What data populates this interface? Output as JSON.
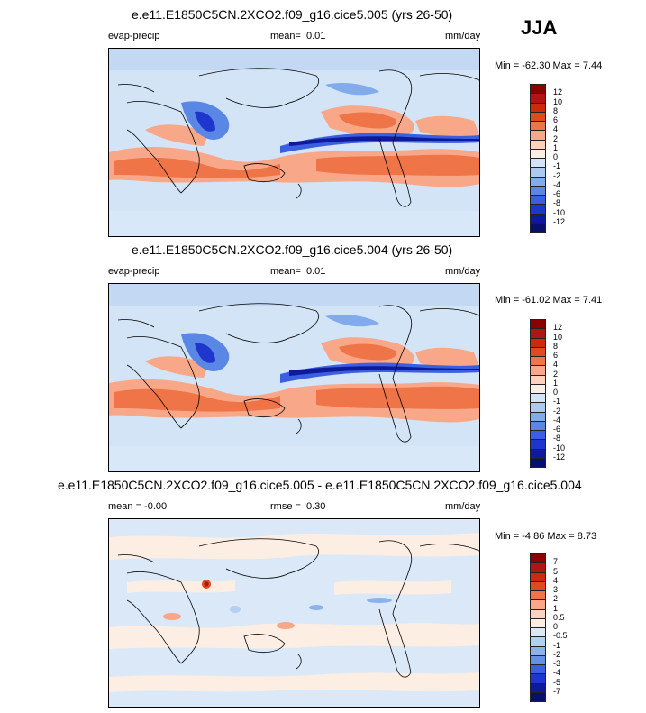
{
  "season": "JJA",
  "panels": [
    {
      "id": "top",
      "title": "e.e11.E1850C5CN.2XCO2.f09_g16.cice5.005 (yrs 26-50)",
      "left_label": "evap-precip",
      "stat_label": "mean=",
      "stat_value": "0.01",
      "units": "mm/day",
      "minmax": "Min = -62.30 Max =   7.44",
      "colorbar_labels": [
        "12",
        "10",
        "8",
        "6",
        "4",
        "2",
        "1",
        "0",
        "-1",
        "-2",
        "-4",
        "-6",
        "-8",
        "-10",
        "-12"
      ]
    },
    {
      "id": "middle",
      "title": "e.e11.E1850C5CN.2XCO2.f09_g16.cice5.004 (yrs 26-50)",
      "left_label": "evap-precip",
      "stat_label": "mean=",
      "stat_value": "0.01",
      "units": "mm/day",
      "minmax": "Min = -61.02 Max =   7.41",
      "colorbar_labels": [
        "12",
        "10",
        "8",
        "6",
        "4",
        "2",
        "1",
        "0",
        "-1",
        "-2",
        "-4",
        "-6",
        "-8",
        "-10",
        "-12"
      ]
    },
    {
      "id": "bottom",
      "title": "e.e11.E1850C5CN.2XCO2.f09_g16.cice5.005 - e.e11.E1850C5CN.2XCO2.f09_g16.cice5.004",
      "left_label": "mean =  -0.00",
      "stat_label": "rmse =",
      "stat_value": "0.30",
      "units": "mm/day",
      "minmax": "Min =  -4.86 Max =   8.73",
      "colorbar_labels": [
        "7",
        "5",
        "4",
        "3",
        "2",
        "1",
        "0.5",
        "0",
        "-0.5",
        "-1",
        "-2",
        "-3",
        "-4",
        "-5",
        "-7"
      ]
    }
  ],
  "colors": {
    "abs_scale": [
      "#8b0000",
      "#b01414",
      "#cc2a0a",
      "#e04a1e",
      "#ef7448",
      "#f8a888",
      "#fcd2bc",
      "#fbeee4",
      "#d2e4f6",
      "#aacaf0",
      "#82abeb",
      "#5a86e6",
      "#3b5fe0",
      "#1f36cc",
      "#0d1a9a",
      "#07106a"
    ],
    "diff_scale": [
      "#8b0000",
      "#b01414",
      "#cc2a0a",
      "#e04a1e",
      "#ef7448",
      "#f8a888",
      "#fcd2bc",
      "#fdeee4",
      "#dae8f7",
      "#b4d0f1",
      "#8cb2ec",
      "#6490e7",
      "#3b5fe0",
      "#1f36cc",
      "#0d1a9a",
      "#07106a"
    ]
  }
}
